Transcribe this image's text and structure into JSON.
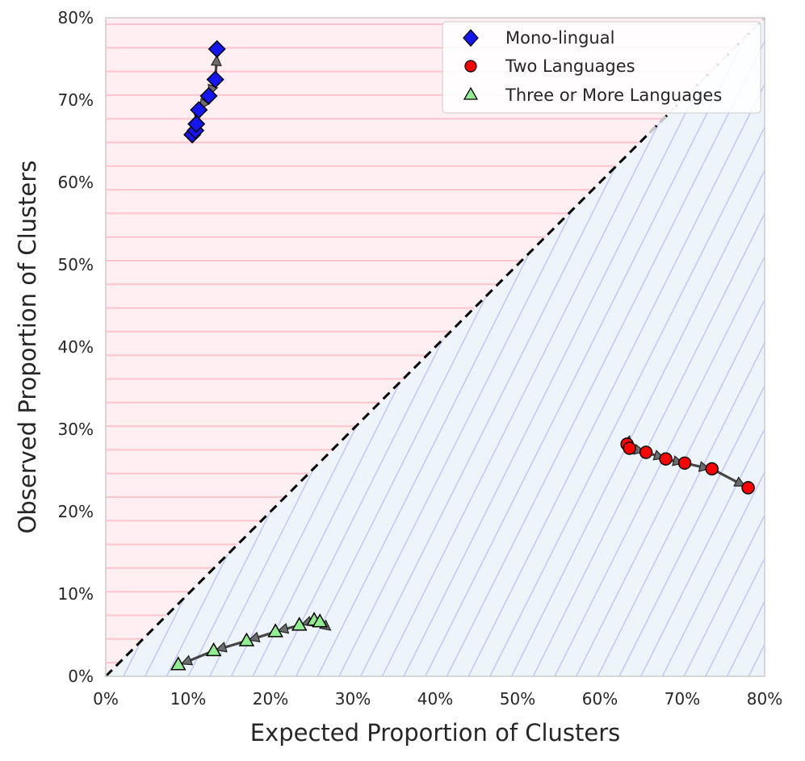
{
  "chart_data": {
    "type": "scatter",
    "title": "",
    "xlabel": "Expected Proportion of Clusters",
    "ylabel": "Observed Proportion of Clusters",
    "xlim": [
      0,
      80
    ],
    "ylim": [
      0,
      80
    ],
    "ticks": [
      0,
      10,
      20,
      30,
      40,
      50,
      60,
      70,
      80
    ],
    "tick_labels": [
      "0%",
      "10%",
      "20%",
      "30%",
      "40%",
      "50%",
      "60%",
      "70%",
      "80%"
    ],
    "reference_line": "y = x",
    "regions": {
      "above_diagonal": "#ffeef2",
      "below_diagonal": "#eef5fa"
    },
    "legend_position": "top-right",
    "series": [
      {
        "name": "Mono-lingual",
        "marker": "diamond",
        "color": "#1515f0",
        "points": [
          {
            "x": 10.5,
            "y": 65.8
          },
          {
            "x": 10.9,
            "y": 66.3
          },
          {
            "x": 11.0,
            "y": 67.1
          },
          {
            "x": 11.3,
            "y": 68.8
          },
          {
            "x": 12.5,
            "y": 70.5
          },
          {
            "x": 13.3,
            "y": 72.5
          },
          {
            "x": 13.5,
            "y": 76.2
          }
        ]
      },
      {
        "name": "Two Languages",
        "marker": "circle",
        "color": "#ff0000",
        "points": [
          {
            "x": 63.3,
            "y": 28.2
          },
          {
            "x": 63.6,
            "y": 27.7
          },
          {
            "x": 65.6,
            "y": 27.2
          },
          {
            "x": 68.0,
            "y": 26.4
          },
          {
            "x": 70.3,
            "y": 25.9
          },
          {
            "x": 73.6,
            "y": 25.2
          },
          {
            "x": 78.0,
            "y": 22.9
          }
        ]
      },
      {
        "name": "Three or More Languages",
        "marker": "triangle",
        "color": "#90ee90",
        "points": [
          {
            "x": 8.8,
            "y": 1.4
          },
          {
            "x": 13.1,
            "y": 3.1
          },
          {
            "x": 17.1,
            "y": 4.3
          },
          {
            "x": 20.6,
            "y": 5.4
          },
          {
            "x": 23.5,
            "y": 6.2
          },
          {
            "x": 25.3,
            "y": 6.8
          },
          {
            "x": 26.0,
            "y": 6.6
          }
        ]
      }
    ],
    "arrows": [
      {
        "series": "Mono-lingual",
        "from": [
          10.5,
          65.8
        ],
        "to": [
          10.0,
          65.4
        ]
      },
      {
        "series": "Mono-lingual",
        "from": [
          10.9,
          66.3
        ],
        "to": [
          11.6,
          66.8
        ]
      },
      {
        "series": "Mono-lingual",
        "from": [
          11.0,
          67.1
        ],
        "to": [
          10.9,
          65.8
        ]
      },
      {
        "series": "Mono-lingual",
        "from": [
          11.3,
          68.8
        ],
        "to": [
          11.0,
          67.4
        ]
      },
      {
        "series": "Mono-lingual",
        "from": [
          12.5,
          70.5
        ],
        "to": [
          11.4,
          68.9
        ]
      },
      {
        "series": "Mono-lingual",
        "from": [
          13.3,
          72.5
        ],
        "to": [
          12.6,
          70.6
        ]
      },
      {
        "series": "Mono-lingual",
        "from": [
          13.3,
          72.5
        ],
        "to": [
          13.5,
          75.4
        ]
      },
      {
        "series": "Two Languages",
        "from": [
          63.3,
          28.2
        ],
        "to": [
          63.6,
          29.2
        ]
      },
      {
        "series": "Two Languages",
        "from": [
          63.6,
          27.7
        ],
        "to": [
          65.4,
          27.3
        ]
      },
      {
        "series": "Two Languages",
        "from": [
          65.6,
          27.2
        ],
        "to": [
          67.8,
          26.5
        ]
      },
      {
        "series": "Two Languages",
        "from": [
          68.0,
          26.4
        ],
        "to": [
          70.1,
          25.9
        ]
      },
      {
        "series": "Two Languages",
        "from": [
          70.3,
          25.9
        ],
        "to": [
          73.3,
          25.2
        ]
      },
      {
        "series": "Two Languages",
        "from": [
          73.6,
          25.2
        ],
        "to": [
          77.6,
          23.1
        ]
      },
      {
        "series": "Three or More Languages",
        "from": [
          13.1,
          3.1
        ],
        "to": [
          9.2,
          1.5
        ]
      },
      {
        "series": "Three or More Languages",
        "from": [
          17.1,
          4.3
        ],
        "to": [
          13.4,
          3.2
        ]
      },
      {
        "series": "Three or More Languages",
        "from": [
          20.6,
          5.4
        ],
        "to": [
          17.4,
          4.4
        ]
      },
      {
        "series": "Three or More Languages",
        "from": [
          23.5,
          6.2
        ],
        "to": [
          20.9,
          5.5
        ]
      },
      {
        "series": "Three or More Languages",
        "from": [
          25.3,
          6.8
        ],
        "to": [
          23.8,
          6.3
        ]
      },
      {
        "series": "Three or More Languages",
        "from": [
          26.0,
          6.6
        ],
        "to": [
          27.3,
          5.6
        ]
      }
    ]
  }
}
